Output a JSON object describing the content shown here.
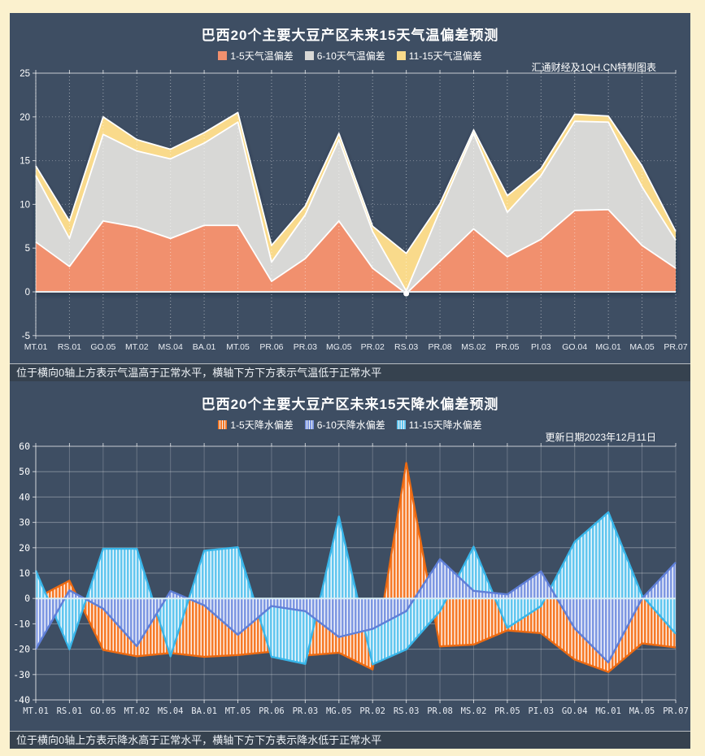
{
  "page": {
    "background": "#FBF1CE",
    "panel_color": "#3E4E63"
  },
  "chart_data": [
    {
      "id": "temperature",
      "type": "area",
      "stacked": true,
      "title": "巴西20个主要大豆产区未来15天气温偏差预测",
      "watermark": "汇通财经及1QH.CN特制图表",
      "ylim": [
        -5,
        25
      ],
      "ytick": 5,
      "grid": "dotted",
      "legend_position": "top-center",
      "zero_line_color": "#E8ECEF",
      "categories": [
        "MT.01",
        "RS.01",
        "GO.05",
        "MT.02",
        "MS.04",
        "BA.01",
        "MT.05",
        "PR.06",
        "PR.03",
        "MG.05",
        "PR.02",
        "RS.03",
        "PR.08",
        "MS.02",
        "PR.05",
        "PI.03",
        "GO.04",
        "MG.01",
        "MA.05",
        "PR.07"
      ],
      "series": [
        {
          "name": "1-5天气温偏差",
          "color": "#F1906E",
          "values": [
            5.7,
            2.9,
            8.1,
            7.4,
            6.1,
            7.6,
            7.6,
            1.2,
            3.8,
            8.1,
            2.7,
            -0.2,
            3.5,
            7.2,
            4.0,
            6.0,
            9.3,
            9.4,
            5.3,
            2.7
          ]
        },
        {
          "name": "6-10天气温偏差",
          "color": "#D8D8D6",
          "values": [
            7.6,
            3.2,
            9.9,
            8.7,
            9.1,
            9.4,
            11.8,
            2.2,
            5.0,
            9.3,
            4.2,
            0.3,
            5.8,
            10.9,
            5.1,
            7.3,
            10.2,
            10.0,
            6.7,
            3.2
          ]
        },
        {
          "name": "11-15天气温偏差",
          "color": "#F9DA8B",
          "values": [
            1.1,
            2.0,
            2.0,
            1.3,
            1.1,
            1.2,
            1.1,
            1.9,
            1.0,
            0.7,
            0.6,
            4.3,
            0.8,
            0.4,
            1.9,
            0.8,
            0.8,
            0.7,
            2.4,
            1.0
          ]
        }
      ],
      "marker": {
        "category": "RS.03",
        "series": "1-5天气温偏差",
        "value": -0.2
      }
    },
    {
      "id": "precipitation",
      "type": "area",
      "stacked": false,
      "striped": true,
      "title": "巴西20个主要大豆产区未来15天降水偏差预测",
      "note": "更新日期2023年12月11日",
      "ylim": [
        -40,
        60
      ],
      "ytick": 10,
      "grid": "solid",
      "legend_position": "top-center",
      "zero_line_color": "#D8EDF6",
      "render_order": [
        0,
        2,
        1
      ],
      "categories": [
        "MT.01",
        "RS.01",
        "GO.05",
        "MT.02",
        "MS.04",
        "BA.01",
        "MT.05",
        "PR.06",
        "PR.03",
        "MG.05",
        "PR.02",
        "RS.03",
        "PR.08",
        "MS.02",
        "PR.05",
        "PI.03",
        "GO.04",
        "MG.01",
        "MA.05",
        "PR.07"
      ],
      "series": [
        {
          "name": "1-5天降水偏差",
          "color": "#F67A28",
          "border": "#EC6A12",
          "values": [
            0,
            7,
            -20.3,
            -22.8,
            -21.5,
            -23,
            -22.3,
            -21,
            -22.5,
            -21.4,
            -28,
            53.4,
            -18.9,
            -18.2,
            -12.6,
            -13.7,
            -24.1,
            -29,
            -17.7,
            -19.3
          ]
        },
        {
          "name": "6-10天降水偏差",
          "color": "#7D97E2",
          "border": "#5F7FD8",
          "values": [
            -20,
            3.2,
            -4,
            -18.8,
            2.9,
            -2.7,
            -14.3,
            -3,
            -5,
            -15.2,
            -12,
            -5,
            15.5,
            3,
            1.6,
            10.7,
            -11.8,
            -25.2,
            0,
            14.2
          ]
        },
        {
          "name": "11-15天降水偏差",
          "color": "#62C6EF",
          "border": "#38B6EA",
          "values": [
            11,
            -20,
            19.6,
            19.6,
            -22.8,
            18.8,
            20.2,
            -23,
            -25.8,
            32.3,
            -26,
            -20.1,
            -5,
            20.4,
            -11.6,
            -3,
            22.3,
            34,
            1.2,
            -13.9
          ]
        }
      ]
    }
  ],
  "annotations": {
    "temperature": "位于横向0轴上方表示气温高于正常水平，横轴下方下方表示气温低于正常水平",
    "precipitation": "位于横向0轴上方表示降水高于正常水平，横轴下方下方表示降水低于正常水平"
  }
}
